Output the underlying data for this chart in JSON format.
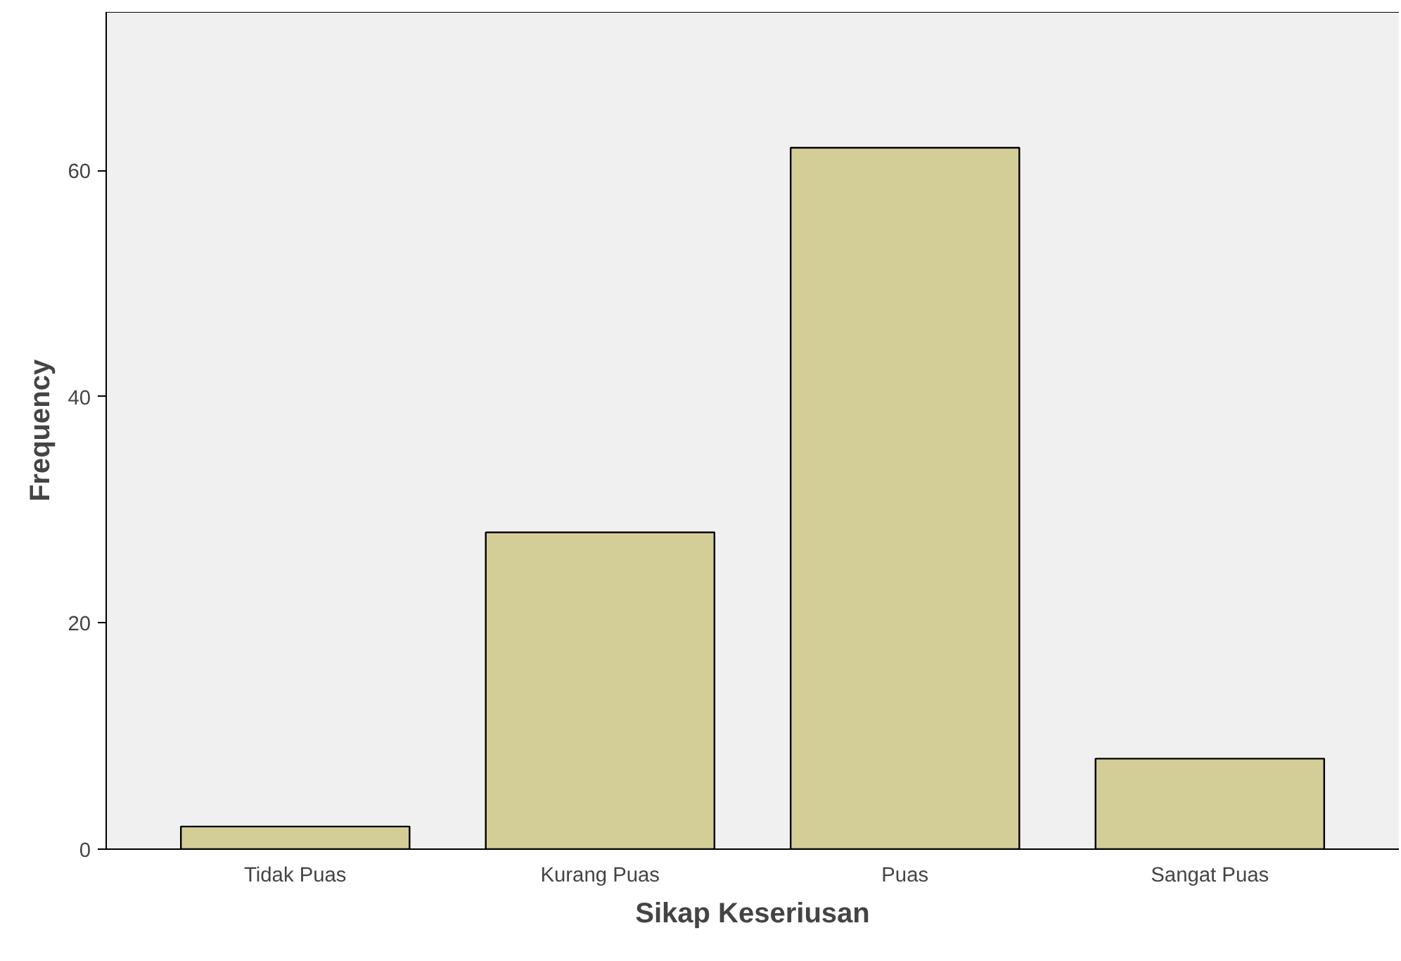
{
  "chart_data": {
    "type": "bar",
    "xlabel": "Sikap Keseriusan",
    "ylabel": "Frequency",
    "categories": [
      "Tidak Puas",
      "Kurang Puas",
      "Puas",
      "Sangat Puas"
    ],
    "values": [
      2,
      28,
      62,
      8
    ],
    "color": "#d3ce97",
    "ylim": [
      0,
      74
    ],
    "yticks": [
      0,
      20,
      40,
      60
    ],
    "grid": false
  }
}
